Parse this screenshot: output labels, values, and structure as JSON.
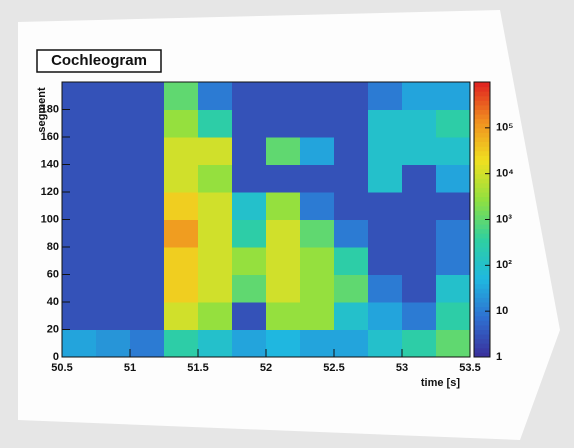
{
  "chart_data": {
    "type": "heatmap",
    "title": "Cochleogram",
    "x_label": "time [s]",
    "y_label": "segment",
    "x_edges": [
      50.5,
      50.75,
      51,
      51.25,
      51.5,
      51.75,
      52,
      52.25,
      52.5,
      52.75,
      53,
      53.25,
      53.5
    ],
    "y_edges": [
      0,
      20,
      40,
      60,
      80,
      100,
      120,
      140,
      160,
      180,
      200
    ],
    "z": [
      [
        30,
        20,
        10,
        300,
        100,
        30,
        50,
        30,
        30,
        100,
        300,
        1000
      ],
      [
        3,
        3,
        3,
        10000,
        3000,
        3,
        3000,
        3000,
        100,
        30,
        10,
        300
      ],
      [
        3,
        3,
        3,
        30000,
        10000,
        1000,
        10000,
        3000,
        1000,
        10,
        3,
        100
      ],
      [
        3,
        3,
        3,
        30000,
        10000,
        3000,
        10000,
        3000,
        300,
        3,
        3,
        10
      ],
      [
        3,
        3,
        3,
        100000,
        10000,
        300,
        10000,
        1000,
        10,
        3,
        3,
        10
      ],
      [
        3,
        3,
        3,
        30000,
        10000,
        100,
        3000,
        10,
        3,
        3,
        3,
        3
      ],
      [
        3,
        3,
        3,
        10000,
        3000,
        3,
        3,
        3,
        3,
        100,
        3,
        30
      ],
      [
        3,
        3,
        3,
        10000,
        10000,
        3,
        1000,
        30,
        3,
        100,
        100,
        100
      ],
      [
        3,
        3,
        3,
        3000,
        300,
        3,
        3,
        3,
        3,
        100,
        100,
        300
      ],
      [
        3,
        3,
        3,
        1000,
        10,
        3,
        3,
        3,
        3,
        10,
        30,
        30
      ]
    ],
    "xlim": [
      50.5,
      53.5
    ],
    "xticks": [
      50.5,
      51,
      51.5,
      52,
      52.5,
      53,
      53.5
    ],
    "ylim": [
      0,
      200
    ],
    "yticks": [
      0,
      20,
      40,
      60,
      80,
      100,
      120,
      140,
      160,
      180
    ],
    "zlim": [
      1,
      1000000
    ],
    "zscale": "log",
    "zticks": [
      1,
      10,
      {
        "value": 100,
        "label": "10²"
      },
      {
        "value": 1000,
        "label": "10³"
      },
      {
        "value": 10000,
        "label": "10⁴"
      },
      {
        "value": 100000,
        "label": "10⁵"
      }
    ],
    "colormap": [
      "#3a2e9a",
      "#2f6fd0",
      "#1fb8e0",
      "#2fd0a0",
      "#90e040",
      "#f0e020",
      "#f09020",
      "#e02020"
    ]
  }
}
